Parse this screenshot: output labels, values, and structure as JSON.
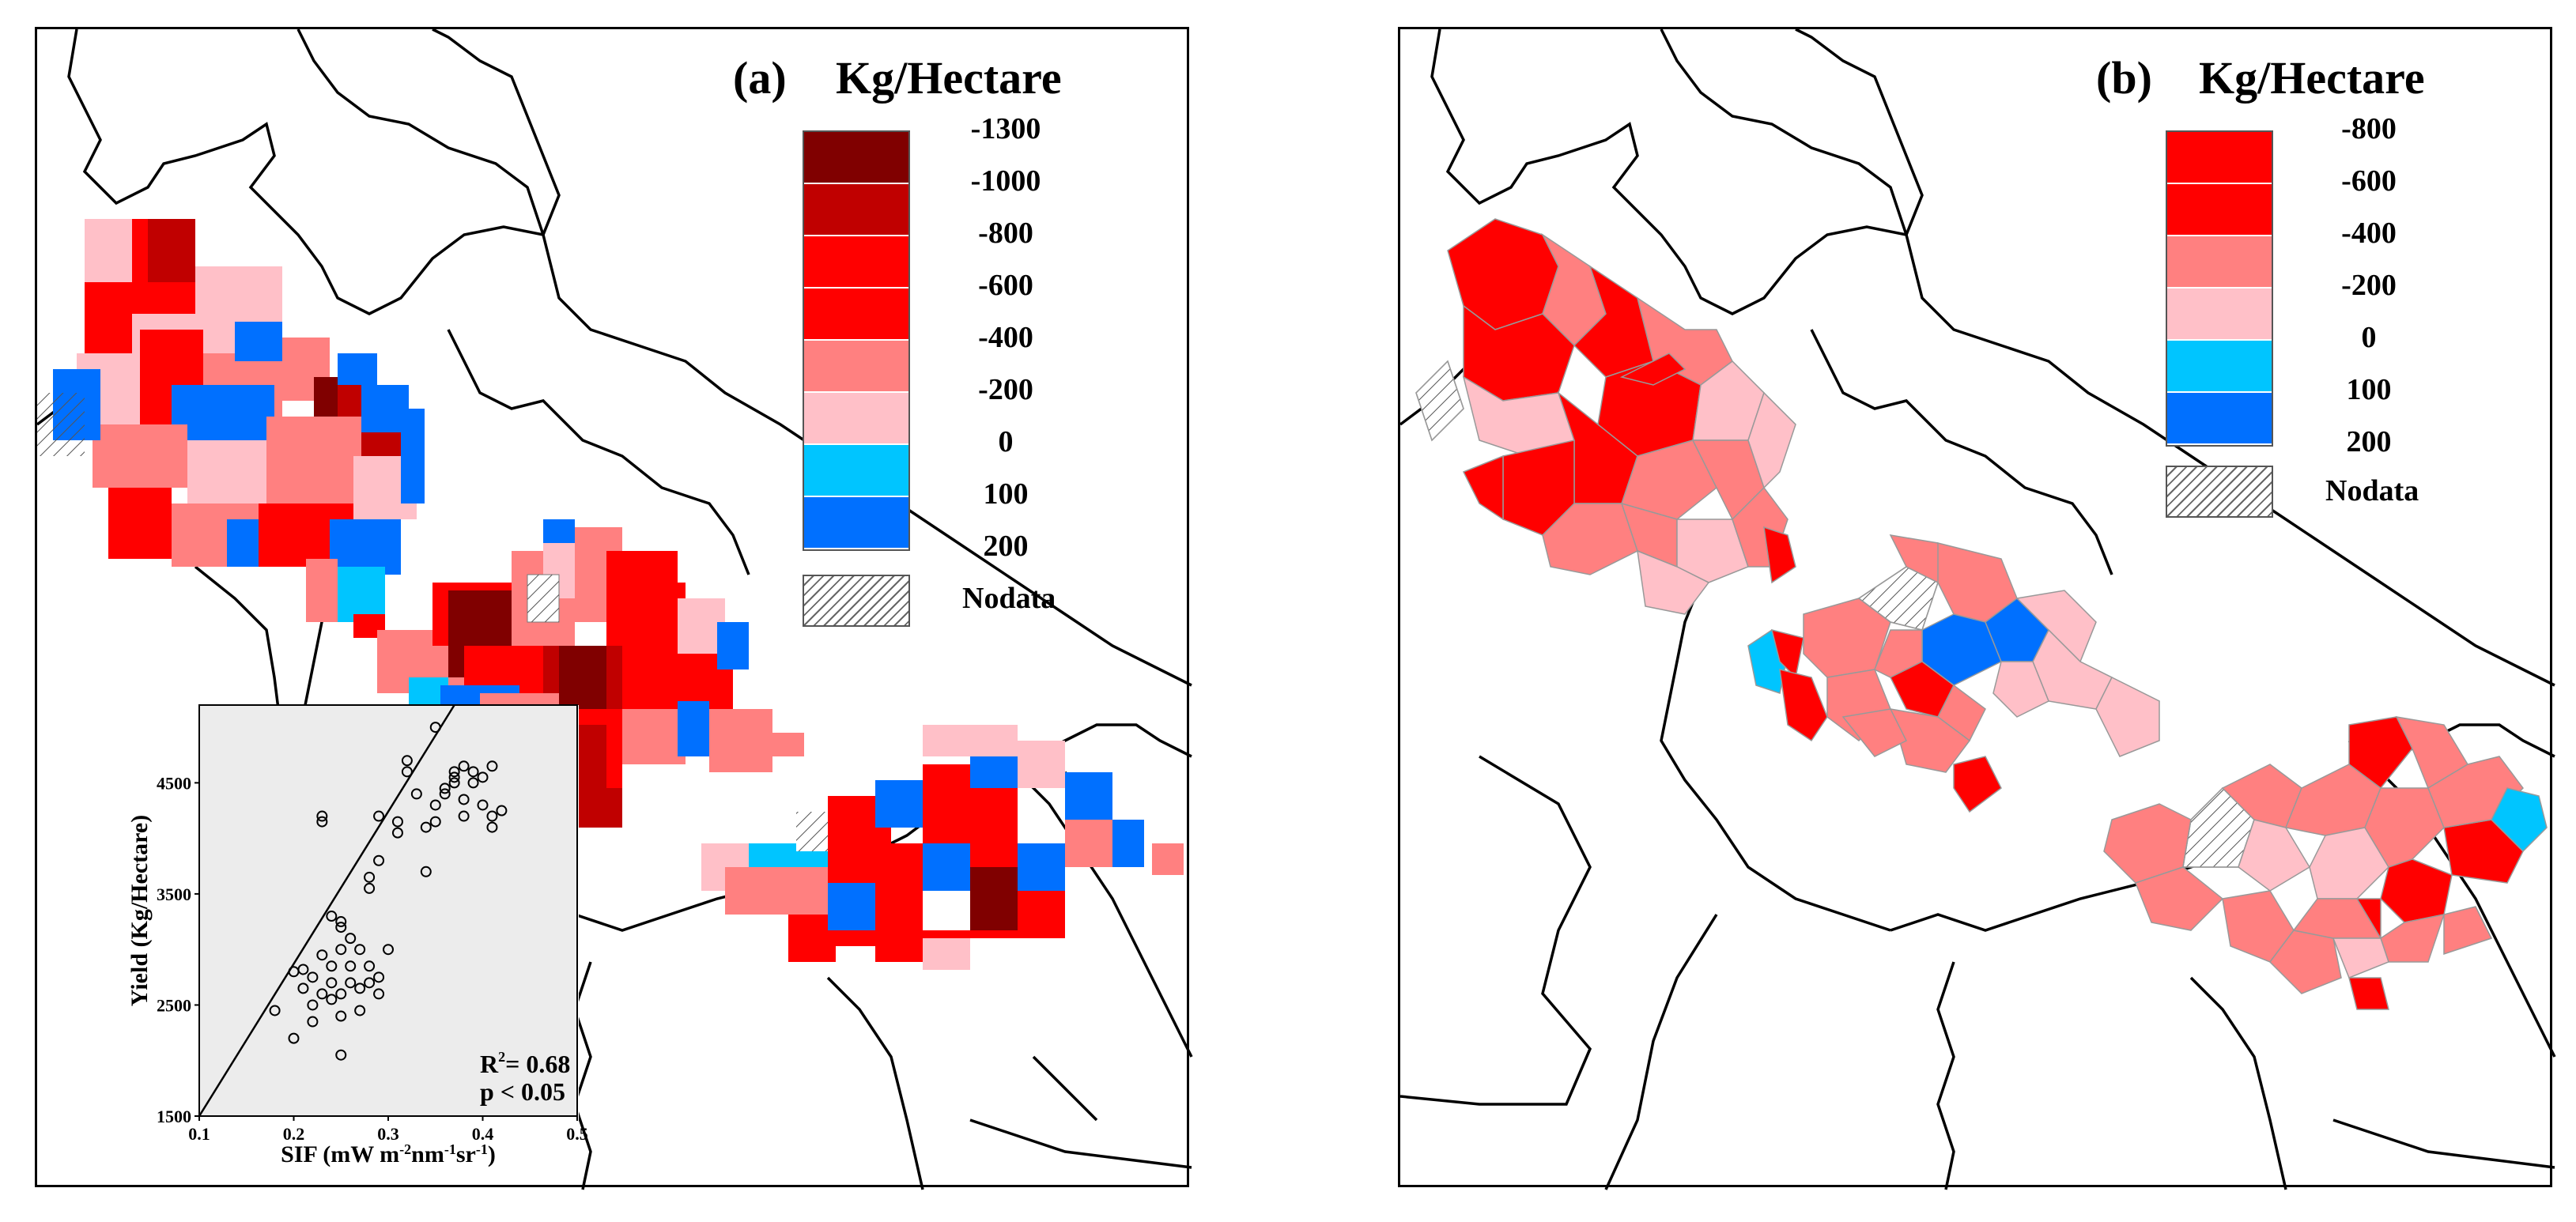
{
  "panels": [
    {
      "label": "(a)",
      "units": "Kg/Hectare",
      "legend": [
        {
          "label": "-1300",
          "color": "#800000"
        },
        {
          "label": "-1000",
          "color": "#c00000"
        },
        {
          "label": "-800",
          "color": "#ff0000"
        },
        {
          "label": "-600",
          "color": "#ff0000"
        },
        {
          "label": "-400",
          "color": "#ff8080"
        },
        {
          "label": "-200",
          "color": "#ffc0c8"
        },
        {
          "label": "0",
          "color": "#00c5ff"
        },
        {
          "label": "100",
          "color": "#0070ff"
        },
        {
          "label": "200",
          "color": ""
        }
      ],
      "nodata_label": "Nodata"
    },
    {
      "label": "(b)",
      "units": "Kg/Hectare",
      "legend": [
        {
          "label": "-800",
          "color": "#ff0000"
        },
        {
          "label": "-600",
          "color": "#ff0000"
        },
        {
          "label": "-400",
          "color": "#ff8080"
        },
        {
          "label": "-200",
          "color": "#ffc0c8"
        },
        {
          "label": "0",
          "color": "#00c5ff"
        },
        {
          "label": "100",
          "color": "#0070ff"
        },
        {
          "label": "200",
          "color": ""
        }
      ],
      "nodata_label": "Nodata"
    }
  ],
  "inset": {
    "r2_label": "R",
    "r2_sup": "2",
    "r2_value": "= 0.68",
    "p_label": "p < 0.05",
    "chart_data": {
      "type": "scatter",
      "xlabel": "SIF (mW m-2nm-1sr-1)",
      "ylabel": "Yield (Kg/Hectare)",
      "xlim": [
        0.1,
        0.5
      ],
      "ylim": [
        1500,
        5200
      ],
      "x_ticks": [
        0.1,
        0.2,
        0.3,
        0.4,
        0.5
      ],
      "y_ticks": [
        1500,
        2500,
        3500,
        4500
      ],
      "points": [
        [
          0.18,
          2450
        ],
        [
          0.2,
          2200
        ],
        [
          0.2,
          2800
        ],
        [
          0.21,
          2650
        ],
        [
          0.21,
          2820
        ],
        [
          0.22,
          2500
        ],
        [
          0.22,
          2350
        ],
        [
          0.22,
          2750
        ],
        [
          0.23,
          2600
        ],
        [
          0.23,
          2950
        ],
        [
          0.23,
          4150
        ],
        [
          0.23,
          4200
        ],
        [
          0.24,
          2550
        ],
        [
          0.24,
          3300
        ],
        [
          0.24,
          2700
        ],
        [
          0.24,
          2850
        ],
        [
          0.25,
          2600
        ],
        [
          0.25,
          2400
        ],
        [
          0.25,
          2050
        ],
        [
          0.25,
          3000
        ],
        [
          0.25,
          3250
        ],
        [
          0.25,
          3200
        ],
        [
          0.26,
          2700
        ],
        [
          0.26,
          3100
        ],
        [
          0.26,
          2850
        ],
        [
          0.27,
          2450
        ],
        [
          0.27,
          2650
        ],
        [
          0.27,
          3000
        ],
        [
          0.28,
          2850
        ],
        [
          0.28,
          2700
        ],
        [
          0.28,
          3650
        ],
        [
          0.28,
          3550
        ],
        [
          0.29,
          3800
        ],
        [
          0.29,
          4200
        ],
        [
          0.29,
          2750
        ],
        [
          0.29,
          2600
        ],
        [
          0.3,
          3000
        ],
        [
          0.31,
          4050
        ],
        [
          0.31,
          4150
        ],
        [
          0.32,
          4600
        ],
        [
          0.32,
          4700
        ],
        [
          0.33,
          4400
        ],
        [
          0.34,
          4100
        ],
        [
          0.34,
          3700
        ],
        [
          0.35,
          4300
        ],
        [
          0.35,
          4150
        ],
        [
          0.35,
          5000
        ],
        [
          0.36,
          4400
        ],
        [
          0.36,
          4450
        ],
        [
          0.37,
          4500
        ],
        [
          0.37,
          4550
        ],
        [
          0.37,
          4600
        ],
        [
          0.38,
          4350
        ],
        [
          0.38,
          4200
        ],
        [
          0.38,
          4650
        ],
        [
          0.39,
          4500
        ],
        [
          0.39,
          4600
        ],
        [
          0.4,
          4300
        ],
        [
          0.4,
          4550
        ],
        [
          0.41,
          4100
        ],
        [
          0.41,
          4200
        ],
        [
          0.41,
          4650
        ],
        [
          0.42,
          4250
        ]
      ],
      "fit_line": {
        "x": [
          0.1,
          0.37
        ],
        "y": [
          1500,
          5200
        ]
      }
    }
  }
}
